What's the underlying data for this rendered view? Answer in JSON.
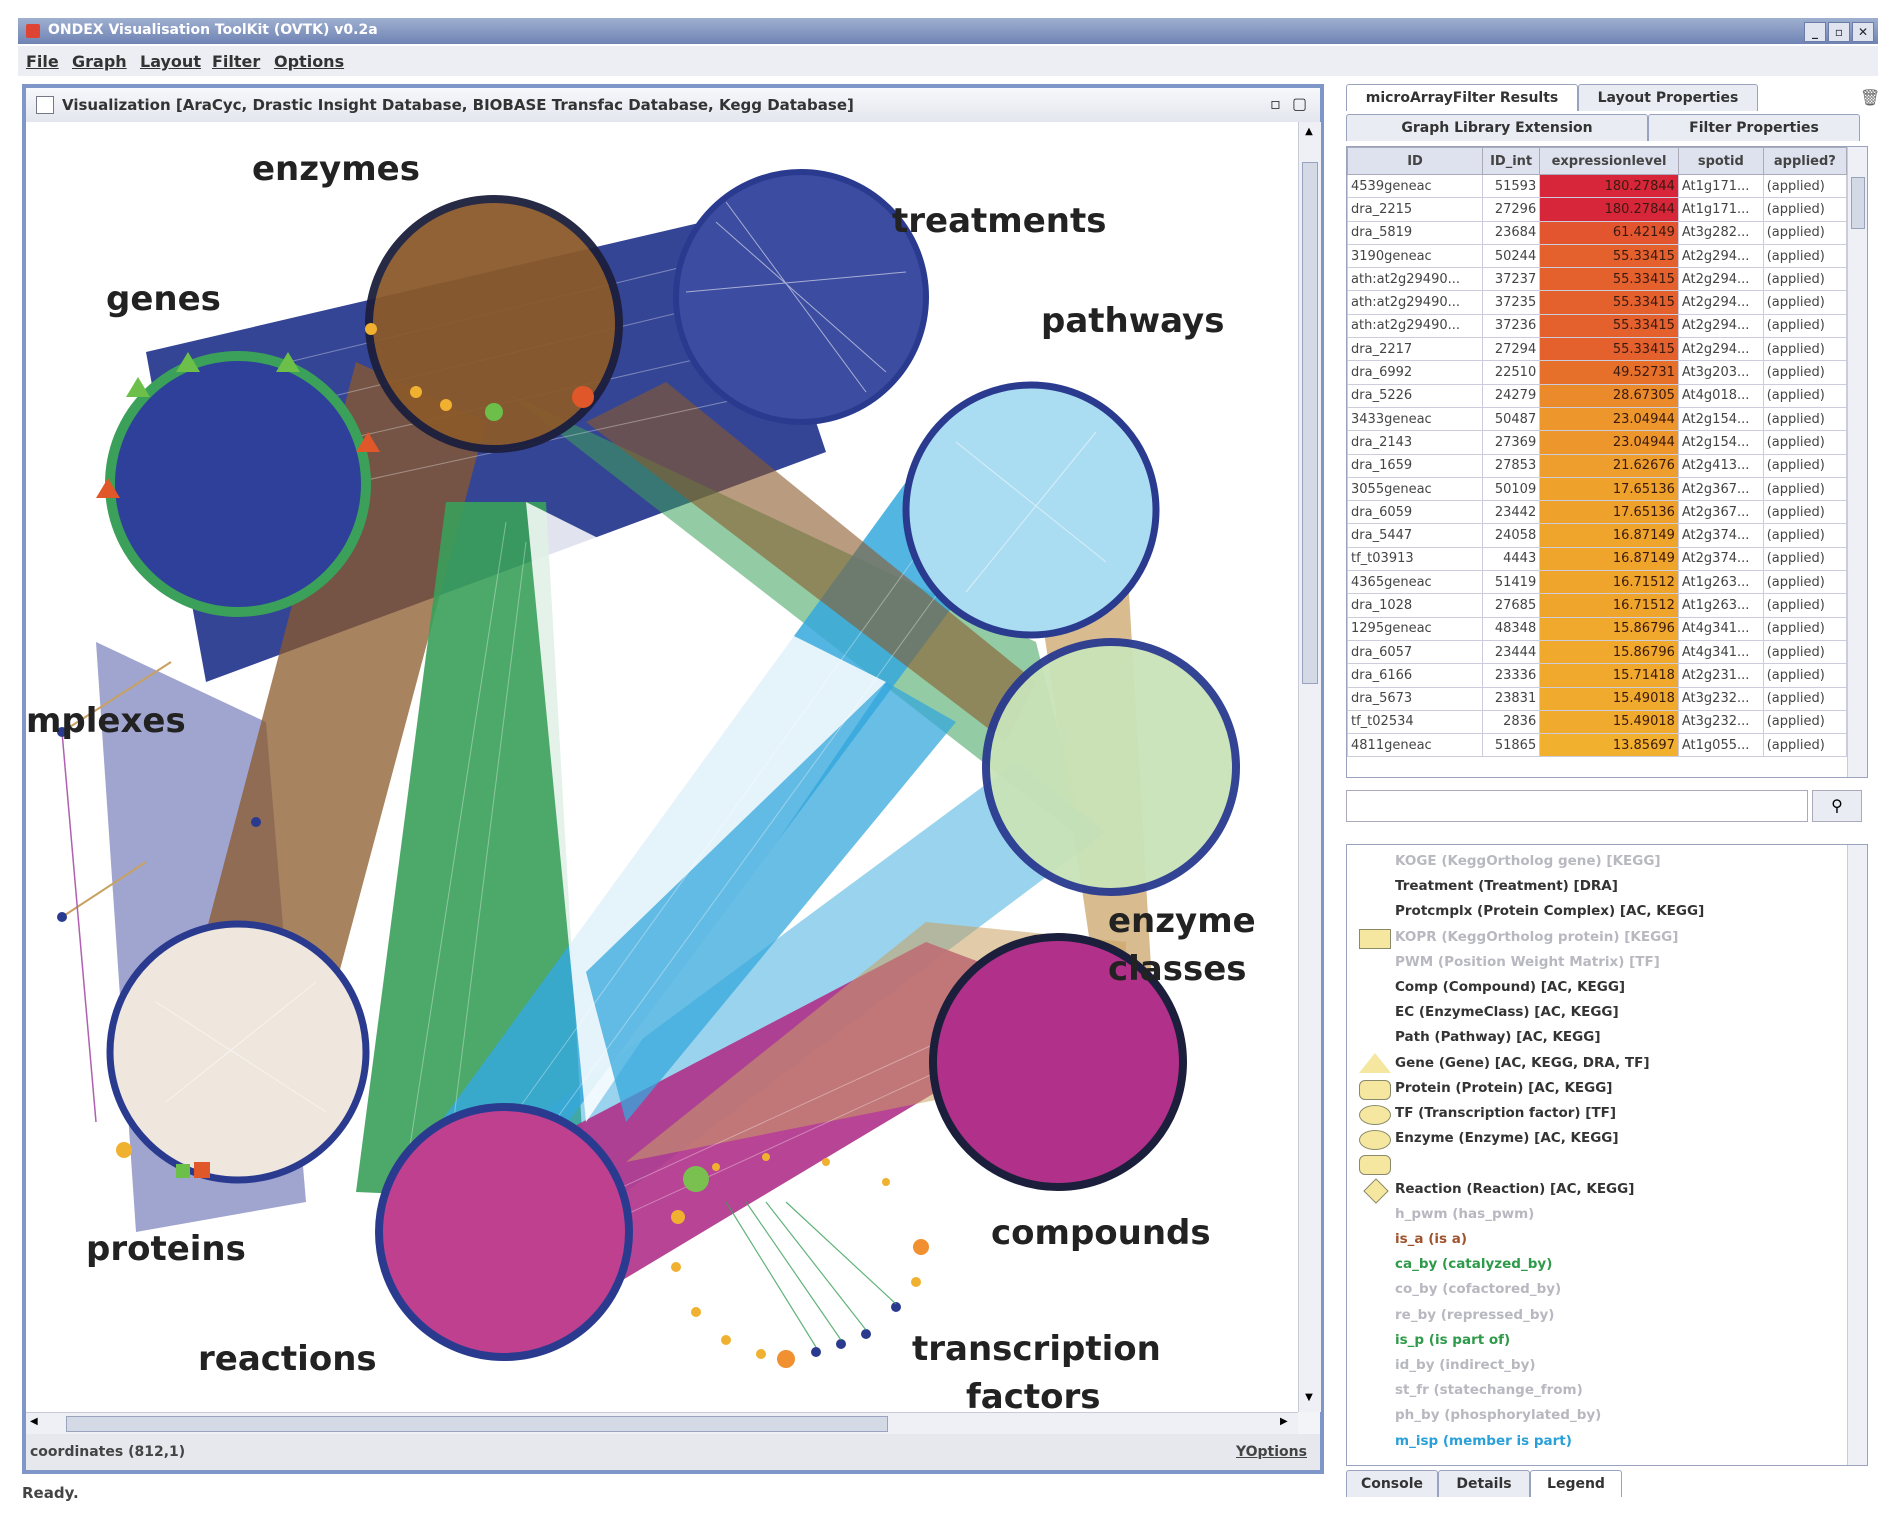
{
  "window": {
    "title": "ONDEX Visualisation ToolKit (OVTK) v0.2a",
    "controls": [
      "_",
      "▫",
      "✕"
    ]
  },
  "menu": [
    "File",
    "Graph",
    "Layout",
    "Filter",
    "Options"
  ],
  "viz": {
    "header": "Visualization [AraCyc, Drastic Insight Database, BIOBASE Transfac Database, Kegg Database]",
    "header_icons": [
      "▫",
      "▢"
    ],
    "coordinates": "coordinates (812,1)",
    "yoptions": "YOptions"
  },
  "graph": {
    "labels": {
      "enzymes": "enzymes",
      "treatments": "treatments",
      "genes": "genes",
      "pathways": "pathways",
      "complexes": "mplexes",
      "enzyme_classes_1": "enzyme",
      "enzyme_classes_2": "classes",
      "proteins": "proteins",
      "compounds": "compounds",
      "reactions": "reactions",
      "tf_1": "transcription",
      "tf_2": "factors"
    },
    "colors": {
      "navy": "#2a3b8f",
      "brown": "#8b5a2b",
      "green": "#3aa05a",
      "cyan": "#35a8dc",
      "magenta": "#b0308a",
      "tan": "#c8a060",
      "lavender": "#8f95c8"
    }
  },
  "status": "Ready.",
  "side": {
    "tabs_row1": [
      "microArrayFilter Results",
      "Layout Properties"
    ],
    "tabs_row2": [
      "Graph Library Extension",
      "Filter Properties"
    ],
    "table": {
      "columns": [
        "ID",
        "ID_int",
        "expressionlevel",
        "spotid",
        "applied?"
      ],
      "rows": [
        [
          "4539geneac",
          "51593",
          "180.27844",
          "At1g171...",
          "(applied)"
        ],
        [
          "dra_2215",
          "27296",
          "180.27844",
          "At1g171...",
          "(applied)"
        ],
        [
          "dra_5819",
          "23684",
          "61.42149",
          "At3g282...",
          "(applied)"
        ],
        [
          "3190geneac",
          "50244",
          "55.33415",
          "At2g294...",
          "(applied)"
        ],
        [
          "ath:at2g29490...",
          "37237",
          "55.33415",
          "At2g294...",
          "(applied)"
        ],
        [
          "ath:at2g29490...",
          "37235",
          "55.33415",
          "At2g294...",
          "(applied)"
        ],
        [
          "ath:at2g29490...",
          "37236",
          "55.33415",
          "At2g294...",
          "(applied)"
        ],
        [
          "dra_2217",
          "27294",
          "55.33415",
          "At2g294...",
          "(applied)"
        ],
        [
          "dra_6992",
          "22510",
          "49.52731",
          "At3g203...",
          "(applied)"
        ],
        [
          "dra_5226",
          "24279",
          "28.67305",
          "At4g018...",
          "(applied)"
        ],
        [
          "3433geneac",
          "50487",
          "23.04944",
          "At2g154...",
          "(applied)"
        ],
        [
          "dra_2143",
          "27369",
          "23.04944",
          "At2g154...",
          "(applied)"
        ],
        [
          "dra_1659",
          "27853",
          "21.62676",
          "At2g413...",
          "(applied)"
        ],
        [
          "3055geneac",
          "50109",
          "17.65136",
          "At2g367...",
          "(applied)"
        ],
        [
          "dra_6059",
          "23442",
          "17.65136",
          "At2g367...",
          "(applied)"
        ],
        [
          "dra_5447",
          "24058",
          "16.87149",
          "At2g374...",
          "(applied)"
        ],
        [
          "tf_t03913",
          "4443",
          "16.87149",
          "At2g374...",
          "(applied)"
        ],
        [
          "4365geneac",
          "51419",
          "16.71512",
          "At1g263...",
          "(applied)"
        ],
        [
          "dra_1028",
          "27685",
          "16.71512",
          "At1g263...",
          "(applied)"
        ],
        [
          "1295geneac",
          "48348",
          "15.86796",
          "At4g341...",
          "(applied)"
        ],
        [
          "dra_6057",
          "23444",
          "15.86796",
          "At4g341...",
          "(applied)"
        ],
        [
          "dra_6166",
          "23336",
          "15.71418",
          "At2g231...",
          "(applied)"
        ],
        [
          "dra_5673",
          "23831",
          "15.49018",
          "At3g232...",
          "(applied)"
        ],
        [
          "tf_t02534",
          "2836",
          "15.49018",
          "At3g232...",
          "(applied)"
        ],
        [
          "4811geneac",
          "51865",
          "13.85697",
          "At1g055...",
          "(applied)"
        ]
      ],
      "heat": [
        "#d7263a",
        "#d7263a",
        "#e2552f",
        "#e4602d",
        "#e4602d",
        "#e4602d",
        "#e4602d",
        "#e4602d",
        "#e66f2a",
        "#ea8a2a",
        "#ec962b",
        "#ec962b",
        "#ee9e2c",
        "#eea22c",
        "#eea22c",
        "#efa52c",
        "#efa52c",
        "#efa52c",
        "#efa52c",
        "#f0a82d",
        "#f0a82d",
        "#f0a82d",
        "#f0aa2d",
        "#f0aa2d",
        "#f2b02f"
      ]
    },
    "search_icon": "binoculars-icon",
    "legend": [
      {
        "text": "KOGE (KeggOrtholog gene) [KEGG]",
        "color": "#b8b8c0",
        "shape": "none"
      },
      {
        "text": "Treatment (Treatment) [DRA]",
        "color": "#333333",
        "shape": "none"
      },
      {
        "text": "Protcmplx (Protein Complex) [AC, KEGG]",
        "color": "#333333",
        "shape": "none"
      },
      {
        "text": "KOPR (KeggOrtholog protein) [KEGG]",
        "color": "#b8b8c0",
        "shape": "rect"
      },
      {
        "text": "PWM (Position Weight Matrix) [TF]",
        "color": "#b8b8c0",
        "shape": "none"
      },
      {
        "text": "Comp (Compound) [AC, KEGG]",
        "color": "#333333",
        "shape": "none"
      },
      {
        "text": "EC (EnzymeClass) [AC, KEGG]",
        "color": "#333333",
        "shape": "none"
      },
      {
        "text": "Path (Pathway) [AC, KEGG]",
        "color": "#333333",
        "shape": "none"
      },
      {
        "text": "Gene (Gene) [AC, KEGG, DRA, TF]",
        "color": "#333333",
        "shape": "triangle"
      },
      {
        "text": "Protein (Protein) [AC, KEGG]",
        "color": "#333333",
        "shape": "round"
      },
      {
        "text": "TF (Transcription factor) [TF]",
        "color": "#333333",
        "shape": "ellipse"
      },
      {
        "text": "Enzyme (Enzyme) [AC, KEGG]",
        "color": "#333333",
        "shape": "ellipse"
      },
      {
        "text": "",
        "color": "#333333",
        "shape": "round"
      },
      {
        "text": "Reaction (Reaction) [AC, KEGG]",
        "color": "#333333",
        "shape": "diamond"
      },
      {
        "text": "h_pwm (has_pwm)",
        "color": "#b8b8c0",
        "shape": "none"
      },
      {
        "text": "is_a (is a)",
        "color": "#a0522d",
        "shape": "none"
      },
      {
        "text": "ca_by (catalyzed_by)",
        "color": "#2e9a4a",
        "shape": "none"
      },
      {
        "text": "co_by (cofactored_by)",
        "color": "#b8b8c0",
        "shape": "none"
      },
      {
        "text": "re_by (repressed_by)",
        "color": "#b8b8c0",
        "shape": "none"
      },
      {
        "text": "is_p (is part of)",
        "color": "#2e9a4a",
        "shape": "none"
      },
      {
        "text": "id_by (indirect_by)",
        "color": "#b8b8c0",
        "shape": "none"
      },
      {
        "text": "st_fr (statechange_from)",
        "color": "#b8b8c0",
        "shape": "none"
      },
      {
        "text": "ph_by (phosphorylated_by)",
        "color": "#b8b8c0",
        "shape": "none"
      },
      {
        "text": "m_isp (member is part)",
        "color": "#2aa0d8",
        "shape": "none"
      }
    ],
    "bottom_tabs": [
      "Console",
      "Details",
      "Legend"
    ]
  }
}
